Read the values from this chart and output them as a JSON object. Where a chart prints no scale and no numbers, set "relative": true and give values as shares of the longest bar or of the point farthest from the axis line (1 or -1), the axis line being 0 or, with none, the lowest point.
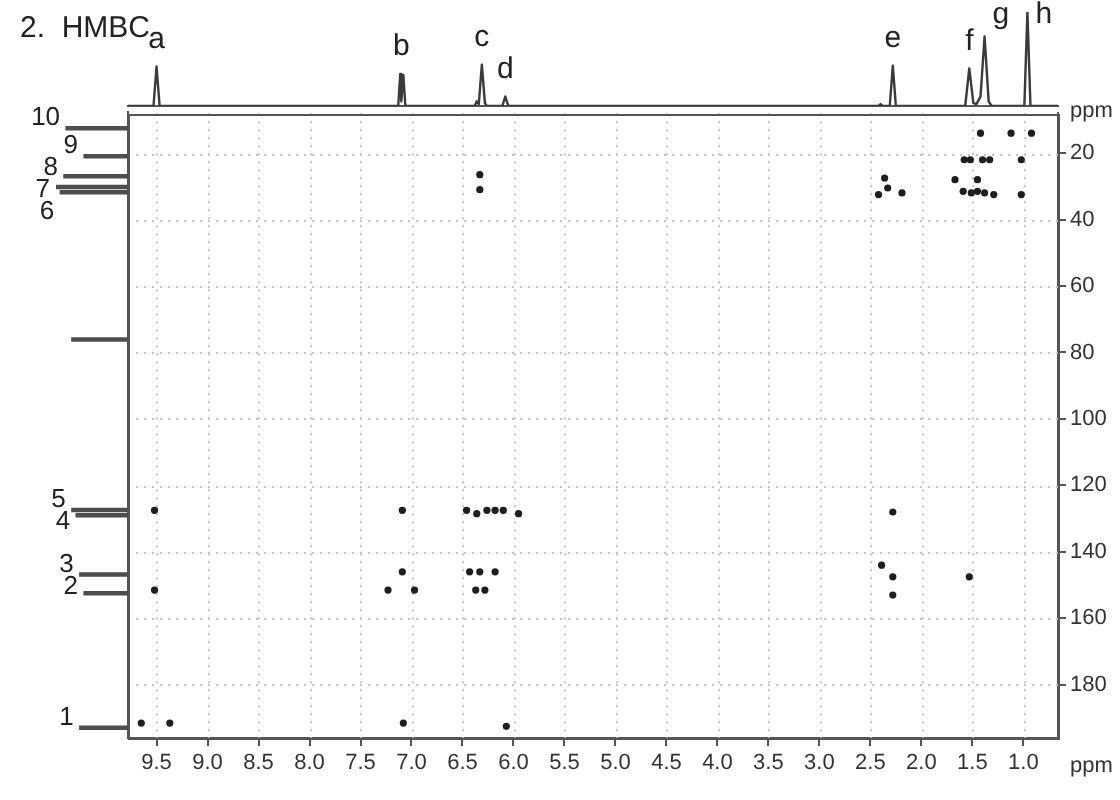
{
  "chart_data": [
    {
      "type": "line",
      "title": "2.  HMBC",
      "relative": true,
      "xlim": [
        9.78,
        0.66
      ],
      "tick_labels": false,
      "series": [
        {
          "color": "#3a3a3a",
          "x": [
            9.78,
            9.53,
            9.5,
            9.47,
            7.13,
            7.11,
            7.1,
            7.08,
            7.06,
            6.38,
            6.36,
            6.34,
            6.31,
            6.28,
            6.26,
            6.11,
            6.08,
            6.05,
            2.42,
            2.4,
            2.38,
            2.31,
            2.28,
            2.25,
            1.57,
            1.53,
            1.49,
            1.46,
            1.42,
            1.38,
            1.34,
            1.31,
            0.99,
            0.96,
            0.93,
            0.66
          ],
          "values": [
            0,
            0,
            0.42,
            0,
            0,
            0.34,
            0.05,
            0.33,
            0,
            0,
            0.05,
            0.02,
            0.44,
            0.03,
            0,
            0,
            0.1,
            0,
            0,
            0.02,
            0,
            0,
            0.43,
            0,
            0,
            0.4,
            0.03,
            0.02,
            0.1,
            0.74,
            0.05,
            0,
            0,
            1,
            0,
            0
          ]
        }
      ],
      "annotations": [
        {
          "text": "a",
          "x": 9.5,
          "y": 0.42
        },
        {
          "text": "b",
          "x": 7.1,
          "y": 0.34
        },
        {
          "text": "c",
          "x": 6.31,
          "y": 0.44
        },
        {
          "text": "d",
          "x": 6.08,
          "y": 0.1
        },
        {
          "text": "e",
          "x": 2.28,
          "y": 0.43
        },
        {
          "text": "f",
          "x": 1.53,
          "y": 0.4
        },
        {
          "text": "g",
          "x": 1.38,
          "y": 0.74
        },
        {
          "text": "h",
          "x": 0.96,
          "y": 1
        }
      ]
    },
    {
      "type": "bar",
      "orientation": "horizontal",
      "relative": true,
      "color": "#4d4d4d",
      "x": [
        192.9,
        152.5,
        146.9,
        129.1,
        127.5,
        76.3,
        32.1,
        30.5,
        27.3,
        21.3,
        12.9
      ],
      "values": [
        0.67,
        0.61,
        0.67,
        0.72,
        0.78,
        0.78,
        0.94,
        1,
        0.89,
        0.61,
        0.86
      ],
      "ylim": [
        196,
        8
      ],
      "tick_labels": false,
      "annotations": [
        {
          "text": "1",
          "x": 0.67,
          "y": 192.9
        },
        {
          "text": "2",
          "x": 0.61,
          "y": 152.5
        },
        {
          "text": "3",
          "x": 0.67,
          "y": 146.9
        },
        {
          "text": "4",
          "x": 0.72,
          "y": 129.1
        },
        {
          "text": "5",
          "x": 0.78,
          "y": 127.5
        },
        {
          "text": "6",
          "x": 0.94,
          "y": 32.1
        },
        {
          "text": "7",
          "x": 1,
          "y": 30.5
        },
        {
          "text": "8",
          "x": 0.89,
          "y": 27.3
        },
        {
          "text": "9",
          "x": 0.61,
          "y": 21.3
        },
        {
          "text": "10",
          "x": 0.86,
          "y": 12.9
        }
      ]
    },
    {
      "type": "scatter",
      "xlabel": "ppm",
      "ylabel": "ppm",
      "xlim": [
        9.78,
        0.66
      ],
      "ylim": [
        196,
        8
      ],
      "xticks": [
        9.5,
        {
          "value": 9,
          "label": "9.0"
        },
        8.5,
        {
          "value": 8,
          "label": "8.0"
        },
        7.5,
        {
          "value": 7,
          "label": "7.0"
        },
        6.5,
        {
          "value": 6,
          "label": "6.0"
        },
        5.5,
        {
          "value": 5,
          "label": "5.0"
        },
        4.5,
        {
          "value": 4,
          "label": "4.0"
        },
        3.5,
        {
          "value": 3,
          "label": "3.0"
        },
        2.5,
        {
          "value": 2,
          "label": "2.0"
        },
        1.5,
        {
          "value": 1,
          "label": "1.0"
        }
      ],
      "yticks": [
        20,
        40,
        60,
        80,
        100,
        120,
        140,
        160,
        180
      ],
      "grid": true,
      "marker": "circle",
      "series": [
        {
          "color": "#1e1e1e",
          "x": [
            1.42,
            1.12,
            0.92,
            1.58,
            1.52,
            1.4,
            1.33,
            1.02,
            6.33,
            2.36,
            1.67,
            1.45,
            2.33,
            6.33,
            2.42,
            2.19,
            1.59,
            1.51,
            1.45,
            1.38,
            1.29,
            1.02,
            9.52,
            7.09,
            6.46,
            6.36,
            6.26,
            6.18,
            6.1,
            5.95,
            2.28,
            7.09,
            6.43,
            6.33,
            6.18,
            2.28,
            1.53,
            2.39,
            9.52,
            7.23,
            6.97,
            6.37,
            6.28,
            2.28,
            9.65,
            9.37,
            7.08,
            6.07
          ],
          "values": [
            14,
            14,
            14,
            22,
            22,
            22,
            22,
            22,
            26.5,
            27.5,
            28,
            28,
            30.5,
            31,
            32.5,
            32,
            31.5,
            32,
            31.5,
            32,
            32.5,
            32.5,
            127.5,
            127.5,
            127.5,
            128.5,
            127.5,
            127.5,
            127.5,
            128.5,
            128,
            146,
            146,
            146,
            146,
            147.5,
            147.5,
            144,
            151.5,
            151.5,
            151.5,
            151.5,
            151.5,
            153,
            191.5,
            191.5,
            191.5,
            192.5
          ]
        }
      ]
    }
  ]
}
